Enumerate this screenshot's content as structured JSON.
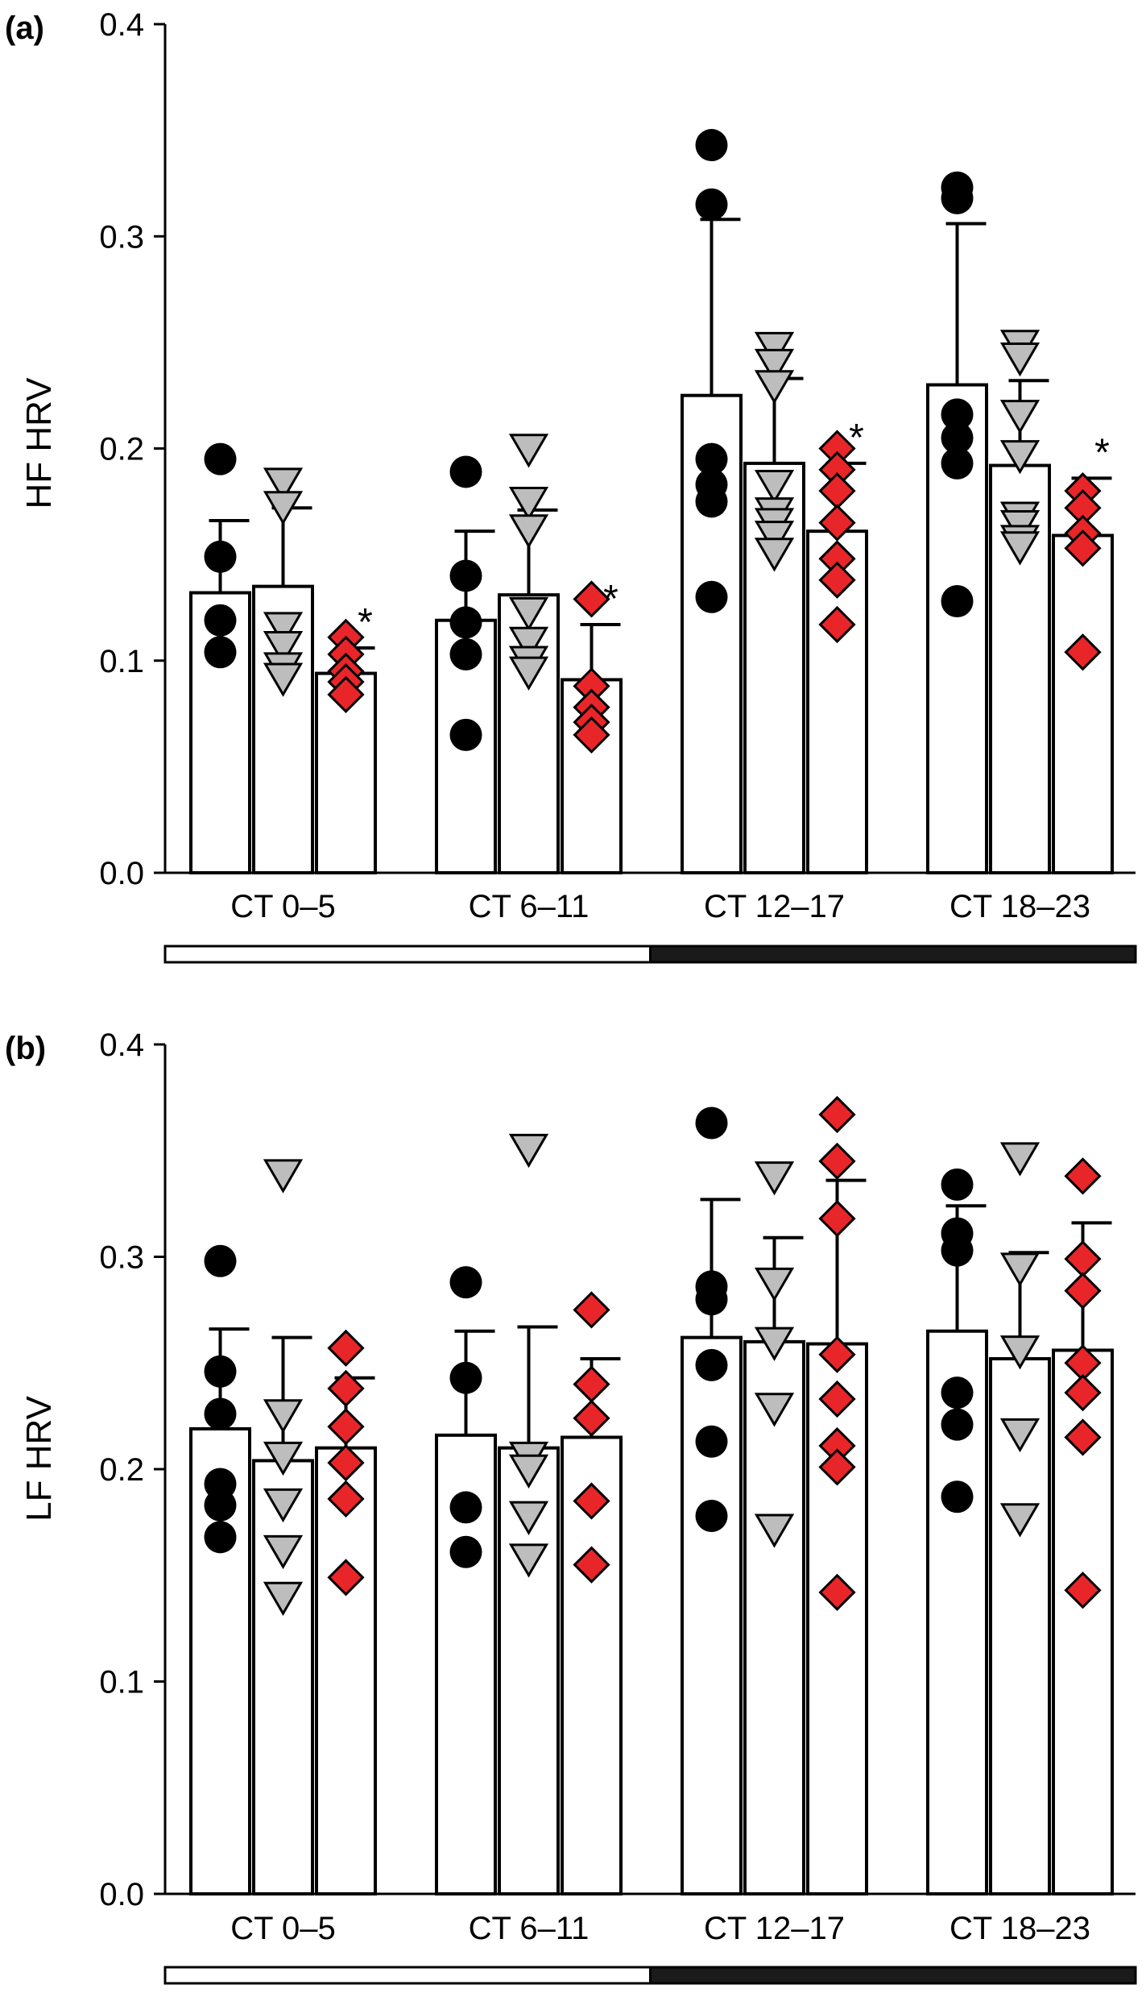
{
  "figure": {
    "panel_labels": [
      "(a)",
      "(b)"
    ]
  },
  "colors": {
    "group1": "#000000",
    "group2": "#bdbdbd",
    "group3": "#e8262a",
    "bar_fill": "#ffffff",
    "light_phase": "#ffffff",
    "dark_phase": "#1a1a1a"
  },
  "chart_data": [
    {
      "type": "bar",
      "panel": "(a)",
      "ylabel": "HF HRV",
      "xlabel": "",
      "ylim": [
        0,
        0.4
      ],
      "yticks": [
        "0.0",
        "0.1",
        "0.2",
        "0.3",
        "0.4"
      ],
      "categories": [
        "CT 0–5",
        "CT 6–11",
        "CT 12–17",
        "CT 18–23"
      ],
      "light_dark_bar": [
        "light",
        "light",
        "dark",
        "dark"
      ],
      "series": [
        {
          "marker": "circle",
          "color": "#000000",
          "values": [
            0.132,
            0.119,
            0.225,
            0.23
          ],
          "sd": [
            0.034,
            0.042,
            0.083,
            0.076
          ],
          "points": [
            [
              0.195,
              0.149,
              0.119,
              0.104
            ],
            [
              0.189,
              0.14,
              0.118,
              0.103,
              0.065
            ],
            [
              0.343,
              0.315,
              0.195,
              0.183,
              0.175,
              0.13
            ],
            [
              0.323,
              0.318,
              0.216,
              0.205,
              0.193,
              0.128
            ]
          ],
          "significance": [
            "",
            "",
            "",
            ""
          ]
        },
        {
          "marker": "triangle-down",
          "color": "#bdbdbd",
          "values": [
            0.135,
            0.131,
            0.193,
            0.192
          ],
          "sd": [
            0.037,
            0.04,
            0.04,
            0.04
          ],
          "points": [
            [
              0.184,
              0.173,
              0.116,
              0.107,
              0.097,
              0.092
            ],
            [
              0.2,
              0.175,
              0.162,
              0.123,
              0.109,
              0.1,
              0.095
            ],
            [
              0.248,
              0.24,
              0.23,
              0.183,
              0.17,
              0.165,
              0.159,
              0.151
            ],
            [
              0.249,
              0.243,
              0.216,
              0.197,
              0.168,
              0.164,
              0.157,
              0.154
            ]
          ],
          "significance": [
            "",
            "",
            "",
            ""
          ]
        },
        {
          "marker": "diamond",
          "color": "#e8262a",
          "values": [
            0.094,
            0.091,
            0.161,
            0.159
          ],
          "sd": [
            0.012,
            0.026,
            0.032,
            0.027
          ],
          "points": [
            [
              0.111,
              0.103,
              0.095,
              0.09,
              0.084
            ],
            [
              0.129,
              0.088,
              0.078,
              0.071,
              0.065
            ],
            [
              0.2,
              0.19,
              0.18,
              0.165,
              0.148,
              0.138,
              0.117
            ],
            [
              0.18,
              0.172,
              0.16,
              0.153,
              0.104
            ]
          ],
          "significance": [
            "*",
            "*",
            "*",
            "*"
          ]
        }
      ]
    },
    {
      "type": "bar",
      "panel": "(b)",
      "ylabel": "LF HRV",
      "xlabel": "",
      "ylim": [
        0,
        0.4
      ],
      "yticks": [
        "0.0",
        "0.1",
        "0.2",
        "0.3",
        "0.4"
      ],
      "categories": [
        "CT 0–5",
        "CT 6–11",
        "CT 12–17",
        "CT 18–23"
      ],
      "light_dark_bar": [
        "light",
        "light",
        "dark",
        "dark"
      ],
      "series": [
        {
          "marker": "circle",
          "color": "#000000",
          "values": [
            0.219,
            0.216,
            0.262,
            0.265
          ],
          "sd": [
            0.047,
            0.049,
            0.065,
            0.059
          ],
          "points": [
            [
              0.298,
              0.246,
              0.226,
              0.193,
              0.183,
              0.168
            ],
            [
              0.288,
              0.243,
              0.182,
              0.161
            ],
            [
              0.363,
              0.286,
              0.28,
              0.249,
              0.213,
              0.178
            ],
            [
              0.334,
              0.311,
              0.303,
              0.236,
              0.221,
              0.187
            ]
          ],
          "significance": [
            "",
            "",
            "",
            ""
          ]
        },
        {
          "marker": "triangle-down",
          "color": "#bdbdbd",
          "values": [
            0.204,
            0.21,
            0.26,
            0.252
          ],
          "sd": [
            0.058,
            0.057,
            0.049,
            0.05
          ],
          "points": [
            [
              0.339,
              0.226,
              0.206,
              0.184,
              0.162,
              0.14
            ],
            [
              0.351,
              0.206,
              0.2,
              0.178,
              0.158
            ],
            [
              0.338,
              0.288,
              0.26,
              0.229,
              0.172
            ],
            [
              0.347,
              0.295,
              0.256,
              0.217,
              0.177
            ]
          ],
          "significance": [
            "",
            "",
            "",
            ""
          ]
        },
        {
          "marker": "diamond",
          "color": "#e8262a",
          "values": [
            0.21,
            0.215,
            0.259,
            0.256
          ],
          "sd": [
            0.033,
            0.037,
            0.077,
            0.06
          ],
          "points": [
            [
              0.257,
              0.238,
              0.22,
              0.203,
              0.186,
              0.149
            ],
            [
              0.275,
              0.24,
              0.224,
              0.185,
              0.155
            ],
            [
              0.367,
              0.345,
              0.318,
              0.254,
              0.233,
              0.211,
              0.201,
              0.142
            ],
            [
              0.338,
              0.299,
              0.284,
              0.25,
              0.236,
              0.215,
              0.143
            ]
          ],
          "significance": [
            "",
            "",
            "",
            ""
          ]
        }
      ]
    }
  ]
}
